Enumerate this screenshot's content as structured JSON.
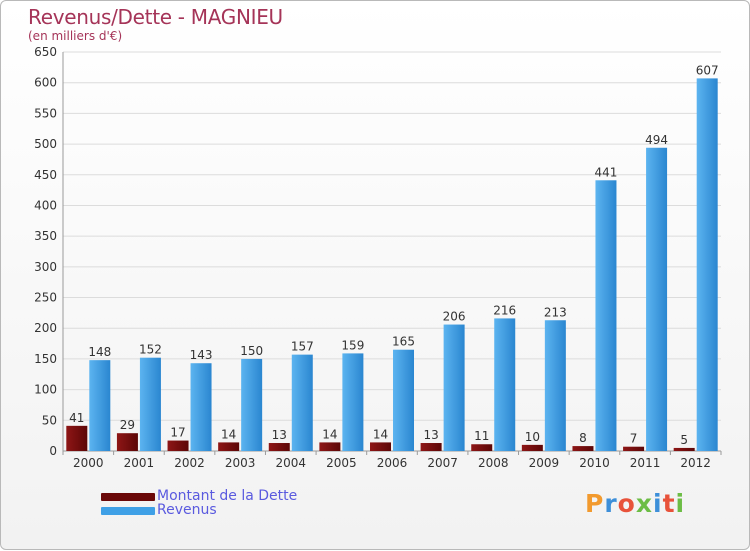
{
  "title": "Revenus/Dette - MAGNIEU",
  "subtitle": "(en milliers d'€)",
  "logo": {
    "text": "Proxiti",
    "letter_colors": [
      "#f29a2e",
      "#3d8fd9",
      "#e8523a",
      "#6cbd45",
      "#3d8fd9",
      "#e8523a",
      "#6cbd45"
    ]
  },
  "colors": {
    "debt": "#7a0c0c",
    "revenue": "#3fa0e6",
    "title": "#a53458",
    "legend_text": "#5a5adf"
  },
  "chart_data": {
    "type": "bar",
    "title": "Revenus/Dette - MAGNIEU",
    "ylabel": "(en milliers d'€)",
    "categories": [
      "2000",
      "2001",
      "2002",
      "2003",
      "2004",
      "2005",
      "2006",
      "2007",
      "2008",
      "2009",
      "2010",
      "2011",
      "2012"
    ],
    "series": [
      {
        "name": "Montant de la Dette",
        "values": [
          41,
          29,
          17,
          14,
          13,
          14,
          14,
          13,
          11,
          10,
          8,
          7,
          5
        ]
      },
      {
        "name": "Revenus",
        "values": [
          148,
          152,
          143,
          150,
          157,
          159,
          165,
          206,
          216,
          213,
          441,
          494,
          607
        ]
      }
    ],
    "ylim": [
      0,
      650
    ],
    "yticks": [
      0,
      50,
      100,
      150,
      200,
      250,
      300,
      350,
      400,
      450,
      500,
      550,
      600,
      650
    ],
    "grid": true,
    "legend_position": "bottom-left"
  }
}
